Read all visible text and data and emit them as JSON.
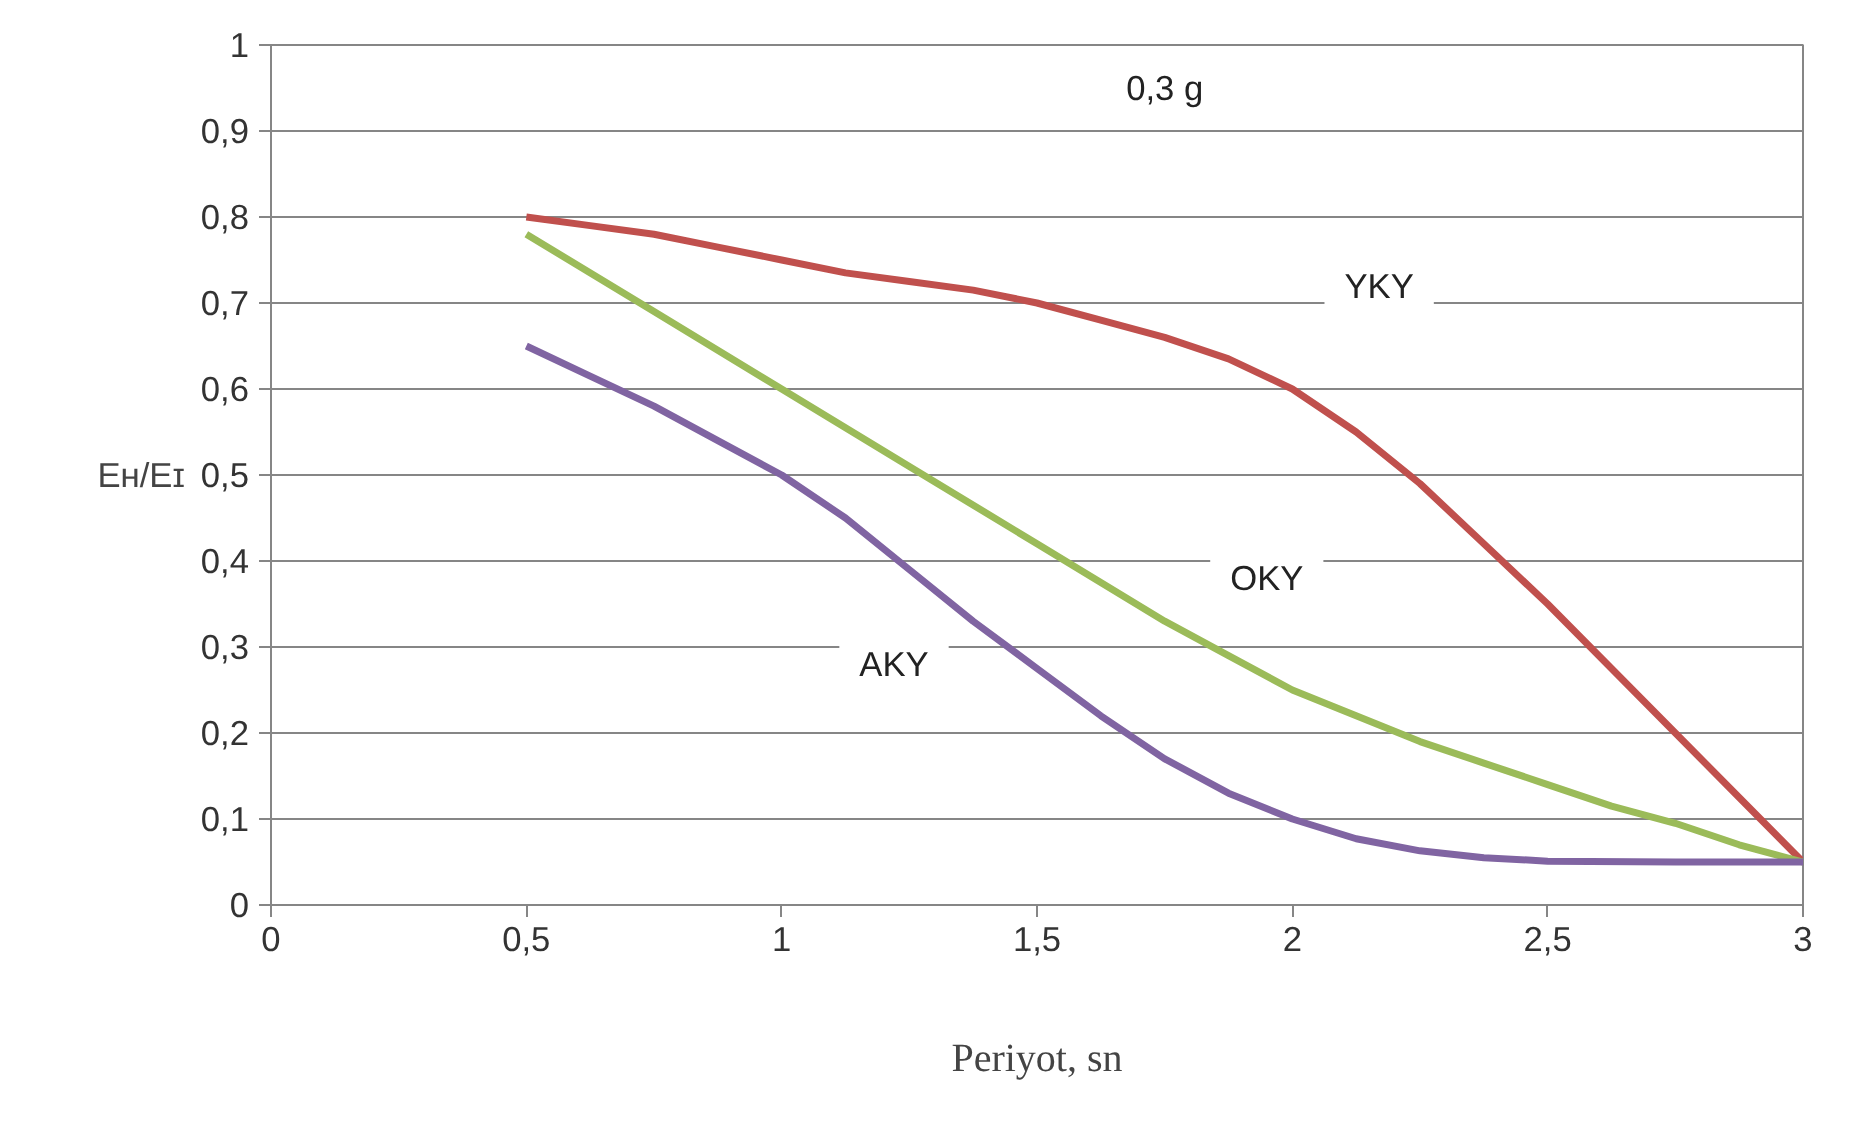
{
  "chart_data": {
    "type": "line",
    "xlabel": "Periyot, sn",
    "ylabel": "Eʜ/Eɪ",
    "series": [
      {
        "name": "YKY",
        "color": "#c0504d",
        "x": [
          0.5,
          0.625,
          0.75,
          0.875,
          1,
          1.125,
          1.25,
          1.375,
          1.5,
          1.625,
          1.75,
          1.875,
          2,
          2.125,
          2.25,
          2.375,
          2.5,
          2.625,
          2.75,
          2.875,
          3
        ],
        "values": [
          0.8,
          0.79,
          0.78,
          0.765,
          0.75,
          0.735,
          0.725,
          0.715,
          0.7,
          0.68,
          0.66,
          0.635,
          0.6,
          0.55,
          0.49,
          0.42,
          0.35,
          0.275,
          0.2,
          0.125,
          0.05
        ]
      },
      {
        "name": "OKY",
        "color": "#9bbb59",
        "x": [
          0.5,
          0.75,
          1,
          1.25,
          1.5,
          1.75,
          1.875,
          2,
          2.125,
          2.25,
          2.375,
          2.5,
          2.625,
          2.75,
          2.875,
          3
        ],
        "values": [
          0.78,
          0.69,
          0.6,
          0.51,
          0.42,
          0.33,
          0.29,
          0.25,
          0.22,
          0.19,
          0.165,
          0.14,
          0.115,
          0.095,
          0.07,
          0.05
        ]
      },
      {
        "name": "AKY",
        "color": "#8064a2",
        "x": [
          0.5,
          0.625,
          0.75,
          0.875,
          1,
          1.125,
          1.25,
          1.375,
          1.5,
          1.625,
          1.75,
          1.875,
          2,
          2.125,
          2.25,
          2.375,
          2.5,
          2.75,
          3
        ],
        "values": [
          0.65,
          0.615,
          0.58,
          0.54,
          0.5,
          0.45,
          0.39,
          0.33,
          0.275,
          0.22,
          0.17,
          0.13,
          0.1,
          0.077,
          0.063,
          0.055,
          0.051,
          0.05,
          0.05
        ]
      }
    ],
    "annotations": [
      "0,3 g"
    ],
    "xlim": [
      0,
      3
    ],
    "ylim": [
      0,
      1
    ],
    "xticks": [
      0,
      {
        "value": 0.5,
        "label": "0,5"
      },
      1,
      {
        "value": 1.5,
        "label": "1,5"
      },
      2,
      {
        "value": 2.5,
        "label": "2,5"
      },
      3
    ],
    "yticks": [
      0,
      {
        "value": 0.1,
        "label": "0,1"
      },
      {
        "value": 0.2,
        "label": "0,2"
      },
      {
        "value": 0.3,
        "label": "0,3"
      },
      {
        "value": 0.4,
        "label": "0,4"
      },
      {
        "value": 0.5,
        "label": "0,5"
      },
      {
        "value": 0.6,
        "label": "0,6"
      },
      {
        "value": 0.7,
        "label": "0,7"
      },
      {
        "value": 0.8,
        "label": "0,8"
      },
      {
        "value": 0.9,
        "label": "0,9"
      },
      1
    ],
    "grid": "y",
    "marker": "none",
    "line_style": "solid"
  }
}
